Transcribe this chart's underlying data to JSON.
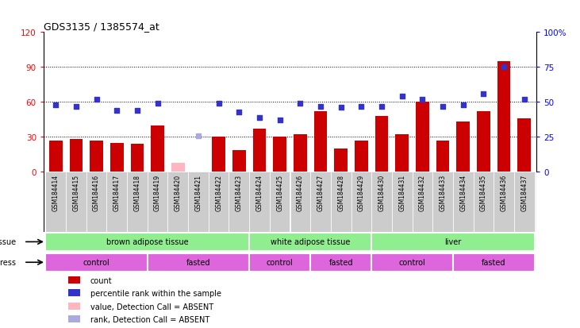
{
  "title": "GDS3135 / 1385574_at",
  "samples": [
    "GSM184414",
    "GSM184415",
    "GSM184416",
    "GSM184417",
    "GSM184418",
    "GSM184419",
    "GSM184420",
    "GSM184421",
    "GSM184422",
    "GSM184423",
    "GSM184424",
    "GSM184425",
    "GSM184426",
    "GSM184427",
    "GSM184428",
    "GSM184429",
    "GSM184430",
    "GSM184431",
    "GSM184432",
    "GSM184433",
    "GSM184434",
    "GSM184435",
    "GSM184436",
    "GSM184437"
  ],
  "count_values": [
    27,
    28,
    27,
    25,
    24,
    40,
    8,
    0,
    30,
    19,
    37,
    30,
    32,
    52,
    20,
    27,
    48,
    32,
    60,
    27,
    43,
    52,
    95,
    46
  ],
  "rank_values": [
    48,
    47,
    52,
    44,
    44,
    49,
    null,
    null,
    49,
    43,
    39,
    37,
    49,
    47,
    46,
    47,
    47,
    54,
    52,
    47,
    48,
    56,
    75,
    52
  ],
  "absent_count": [
    false,
    false,
    false,
    false,
    false,
    false,
    true,
    false,
    false,
    false,
    false,
    false,
    false,
    false,
    false,
    false,
    false,
    false,
    false,
    false,
    false,
    false,
    false,
    false
  ],
  "absent_rank": [
    false,
    false,
    false,
    false,
    false,
    false,
    false,
    true,
    false,
    false,
    false,
    false,
    false,
    false,
    false,
    false,
    false,
    false,
    false,
    false,
    false,
    false,
    false,
    false
  ],
  "count_max": 120,
  "rank_max": 100,
  "bar_color_normal": "#CC0000",
  "bar_color_absent": "#FFB6C1",
  "rank_color_normal": "#3333CC",
  "rank_color_absent": "#AAAADD",
  "bg_color": "#CCCCCC",
  "plot_bg": "#FFFFFF",
  "left_yticks": [
    0,
    30,
    60,
    90,
    120
  ],
  "right_ytick_vals": [
    0,
    25,
    50,
    75,
    100
  ],
  "right_ytick_labels": [
    "0",
    "25",
    "50",
    "75",
    "100%"
  ],
  "grid_lines": [
    30,
    60,
    90
  ],
  "tissue_defs": [
    {
      "label": "brown adipose tissue",
      "start": 0,
      "end": 10
    },
    {
      "label": "white adipose tissue",
      "start": 10,
      "end": 16
    },
    {
      "label": "liver",
      "start": 16,
      "end": 24
    }
  ],
  "stress_defs": [
    {
      "label": "control",
      "start": 0,
      "end": 5
    },
    {
      "label": "fasted",
      "start": 5,
      "end": 10
    },
    {
      "label": "control",
      "start": 10,
      "end": 13
    },
    {
      "label": "fasted",
      "start": 13,
      "end": 16
    },
    {
      "label": "control",
      "start": 16,
      "end": 20
    },
    {
      "label": "fasted",
      "start": 20,
      "end": 24
    }
  ],
  "tissue_color": "#90EE90",
  "stress_color": "#DD66DD",
  "legend_items": [
    {
      "color": "#CC0000",
      "label": "count"
    },
    {
      "color": "#3333CC",
      "label": "percentile rank within the sample"
    },
    {
      "color": "#FFB6C1",
      "label": "value, Detection Call = ABSENT"
    },
    {
      "color": "#AAAADD",
      "label": "rank, Detection Call = ABSENT"
    }
  ]
}
